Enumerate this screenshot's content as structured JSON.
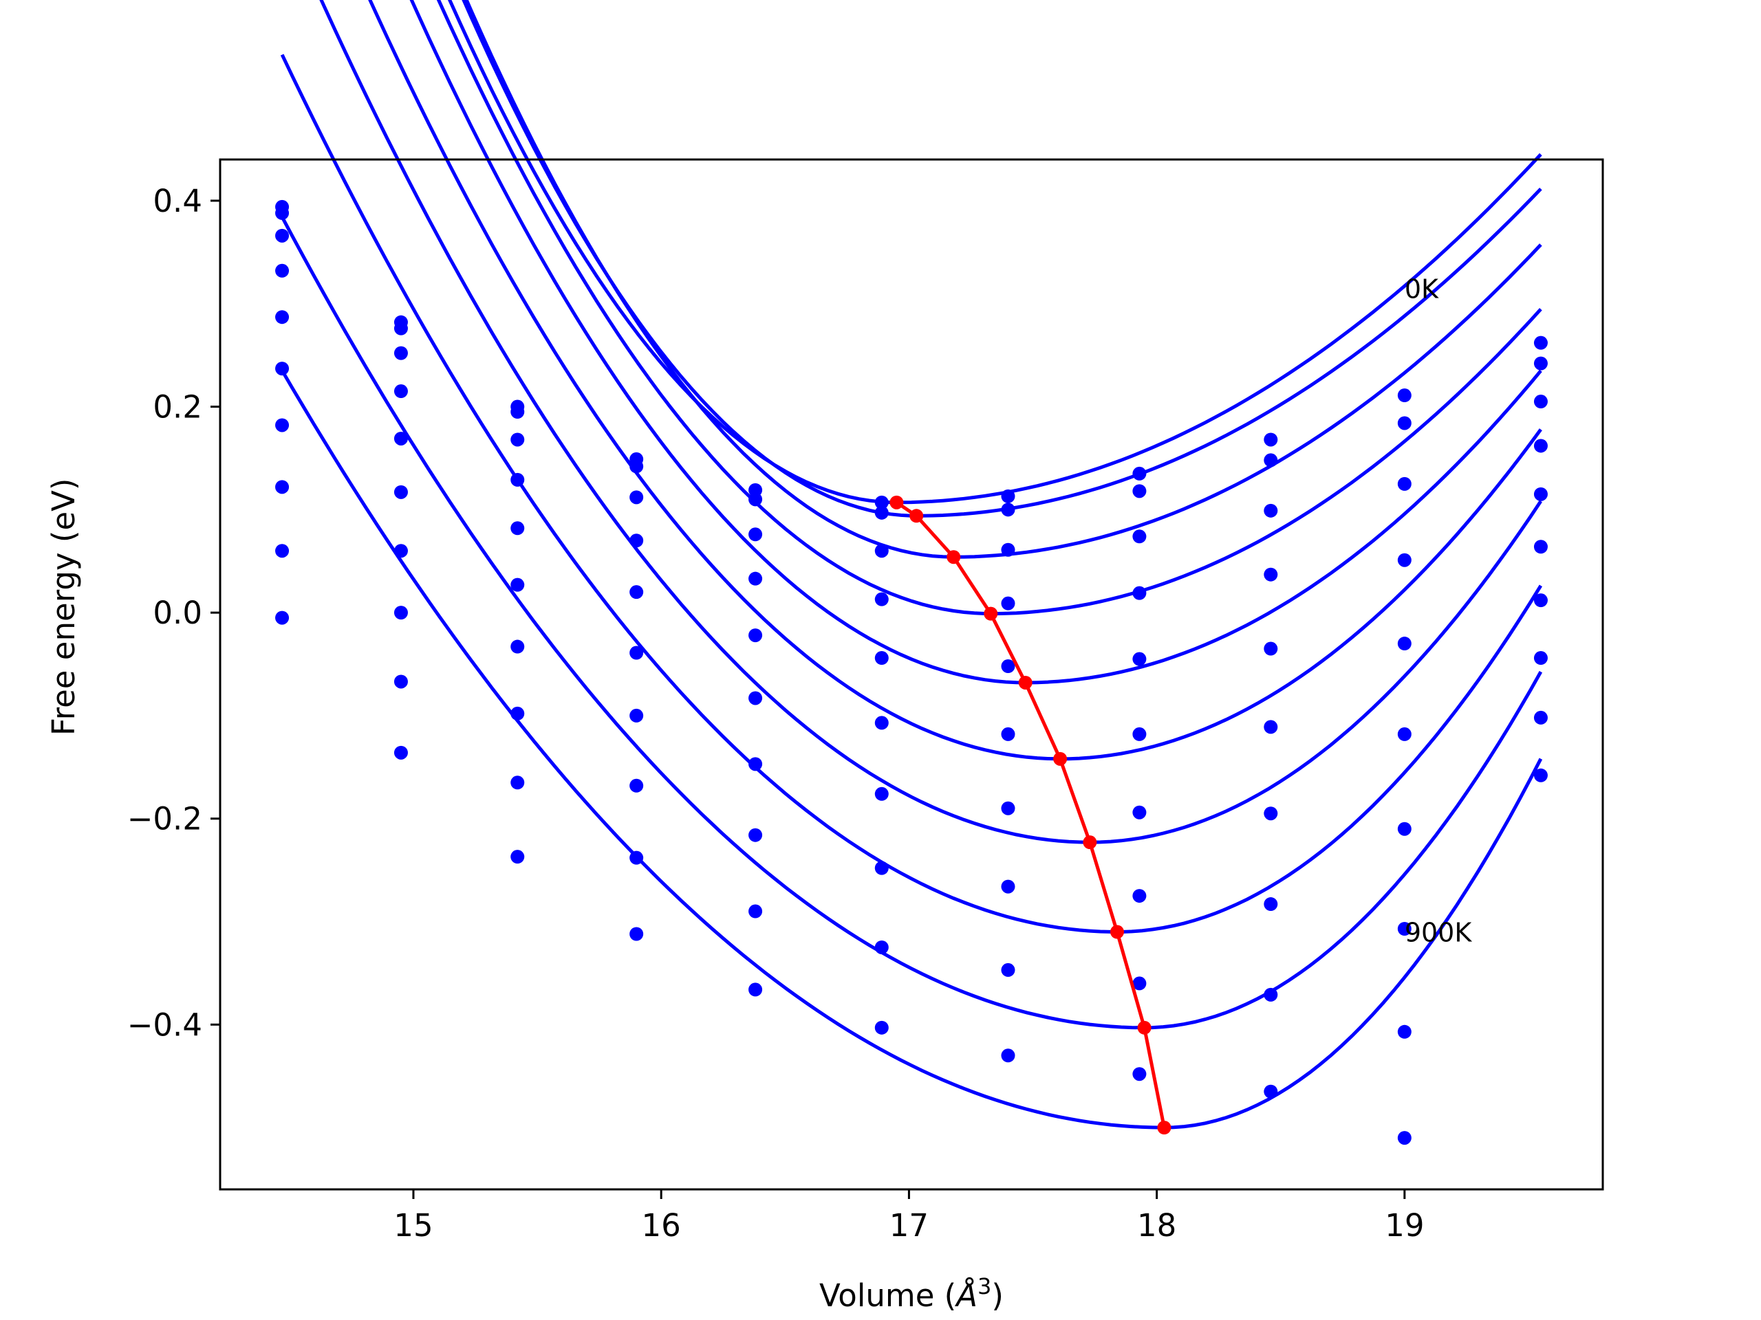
{
  "chart_data": {
    "type": "line",
    "title": "",
    "xlabel": "Volume (",
    "xlabel_symbol": "Å",
    "xlabel_exponent": "3",
    "xlabel_close": ")",
    "ylabel": "Free energy (eV)",
    "xlim": [
      14.22,
      19.8
    ],
    "ylim": [
      -0.56,
      0.44
    ],
    "x_ticks": [
      15,
      16,
      17,
      18,
      19
    ],
    "x_tick_labels": [
      "15",
      "16",
      "17",
      "18",
      "19"
    ],
    "y_ticks": [
      0.4,
      0.2,
      0.0,
      -0.2,
      -0.4
    ],
    "y_tick_labels": [
      "0.4",
      "0.2",
      "0.0",
      "−0.2",
      "−0.4"
    ],
    "grid": false,
    "annotations": [
      {
        "text": "0K",
        "x": 19.0,
        "y": 0.315
      },
      {
        "text": "900K",
        "x": 19.0,
        "y": -0.31
      }
    ],
    "colors": {
      "curves": "#0000ff",
      "points": "#0000ff",
      "minimum_path": "#ff0000",
      "frame": "#000000"
    },
    "volumes": [
      14.47,
      14.95,
      15.42,
      15.9,
      16.38,
      16.89,
      17.4,
      17.93,
      18.46,
      19.0,
      19.55
    ],
    "fit_range": [
      14.47,
      19.55
    ],
    "series": [
      {
        "min_volume": 16.95,
        "min_energy": 0.107,
        "a_left": 0.15,
        "a_right": 0.05,
        "points": [
          0.394,
          0.282,
          0.2,
          0.149,
          0.119,
          0.107,
          0.113,
          0.135,
          0.168,
          0.211,
          0.262
        ]
      },
      {
        "min_volume": 17.03,
        "min_energy": 0.094,
        "a_left": 0.15,
        "a_right": 0.05,
        "points": [
          0.388,
          0.276,
          0.195,
          0.142,
          0.11,
          0.097,
          0.1,
          0.118,
          0.148,
          0.184,
          0.242
        ]
      },
      {
        "min_volume": 17.18,
        "min_energy": 0.054,
        "a_left": 0.14,
        "a_right": 0.054,
        "points": [
          0.366,
          0.252,
          0.168,
          0.112,
          0.076,
          0.06,
          0.061,
          0.074,
          0.099,
          0.125,
          0.205
        ]
      },
      {
        "min_volume": 17.33,
        "min_energy": -0.001,
        "a_left": 0.12,
        "a_right": 0.06,
        "points": [
          0.332,
          0.215,
          0.129,
          0.07,
          0.033,
          0.013,
          0.009,
          0.019,
          0.037,
          0.051,
          0.162
        ]
      },
      {
        "min_volume": 17.47,
        "min_energy": -0.068,
        "a_left": 0.108,
        "a_right": 0.07,
        "points": [
          0.287,
          0.169,
          0.082,
          0.02,
          -0.022,
          -0.044,
          -0.052,
          -0.045,
          -0.035,
          -0.03,
          0.115
        ]
      },
      {
        "min_volume": 17.61,
        "min_energy": -0.142,
        "a_left": 0.095,
        "a_right": 0.085,
        "points": [
          0.237,
          0.117,
          0.027,
          -0.039,
          -0.083,
          -0.107,
          -0.118,
          -0.118,
          -0.111,
          -0.118,
          0.064
        ]
      },
      {
        "min_volume": 17.73,
        "min_energy": -0.223,
        "a_left": 0.085,
        "a_right": 0.1,
        "points": [
          0.182,
          0.06,
          -0.033,
          -0.1,
          -0.147,
          -0.176,
          -0.19,
          -0.194,
          -0.195,
          -0.21,
          0.012
        ]
      },
      {
        "min_volume": 17.84,
        "min_energy": -0.31,
        "a_left": 0.075,
        "a_right": 0.115,
        "points": [
          0.122,
          0.0,
          -0.098,
          -0.168,
          -0.216,
          -0.248,
          -0.266,
          -0.275,
          -0.283,
          -0.307,
          -0.044
        ]
      },
      {
        "min_volume": 17.95,
        "min_energy": -0.403,
        "a_left": 0.065,
        "a_right": 0.135,
        "points": [
          0.06,
          -0.067,
          -0.165,
          -0.238,
          -0.29,
          -0.325,
          -0.347,
          -0.36,
          -0.371,
          -0.407,
          -0.102
        ]
      },
      {
        "min_volume": 18.03,
        "min_energy": -0.5,
        "a_left": 0.058,
        "a_right": 0.155,
        "points": [
          -0.005,
          -0.136,
          -0.237,
          -0.312,
          -0.366,
          -0.403,
          -0.43,
          -0.448,
          -0.465,
          -0.51,
          -0.158
        ]
      }
    ],
    "minimum_path": {
      "x": [
        16.95,
        17.03,
        17.18,
        17.33,
        17.47,
        17.61,
        17.73,
        17.84,
        17.95,
        18.03
      ],
      "y": [
        0.107,
        0.094,
        0.054,
        -0.001,
        -0.068,
        -0.142,
        -0.223,
        -0.31,
        -0.403,
        -0.5
      ]
    }
  }
}
